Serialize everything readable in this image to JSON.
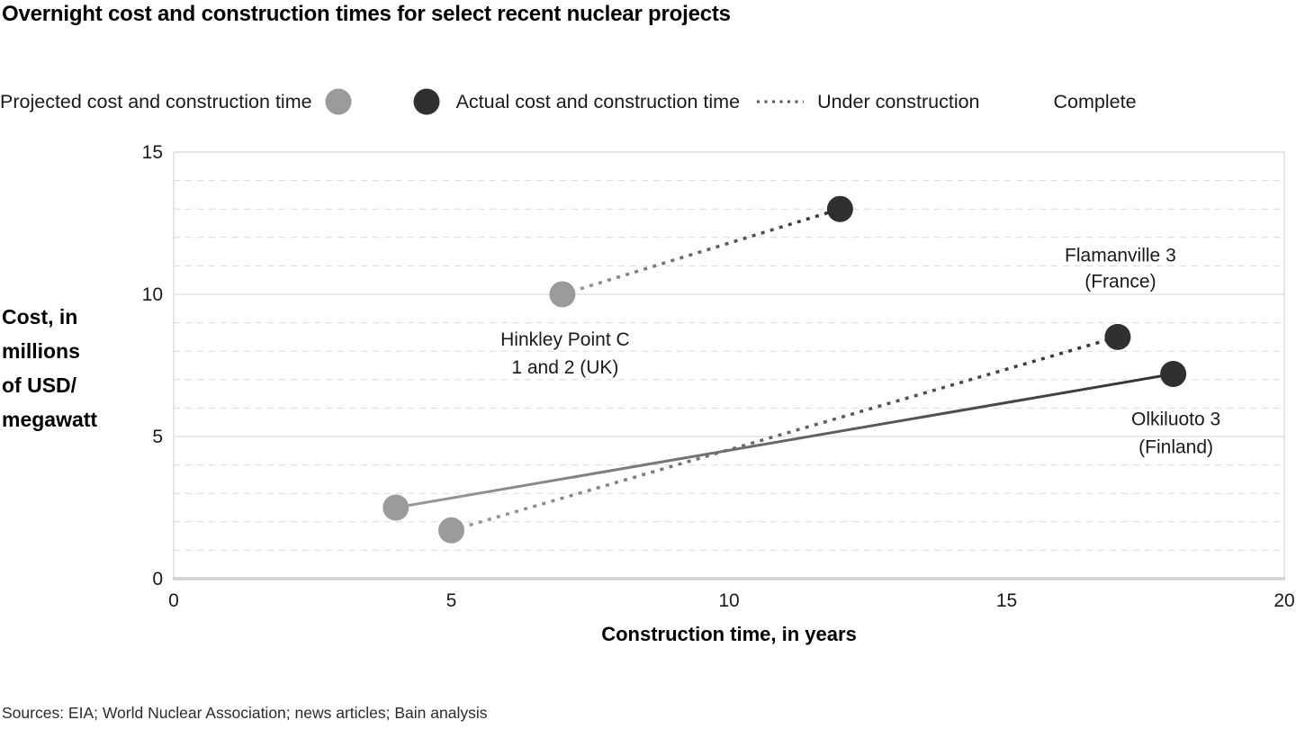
{
  "title": "Overnight cost and construction times for select recent nuclear projects",
  "legend": {
    "projected_label": "Projected cost and construction time",
    "actual_label": "Actual cost and construction time",
    "under_construction_label": "Under construction",
    "complete_label": "Complete"
  },
  "y_axis_title_display": "Cost, in\nmillions\nof USD/\nmegawatt",
  "sources": "Sources: EIA; World Nuclear Association; news articles; Bain analysis",
  "colors": {
    "projected": "#9b9b9b",
    "actual": "#303030",
    "text": "#1a1a1a",
    "axis_text": "#1a1a1a",
    "grid_minor": "#d9d9d9",
    "grid_major": "#d4d4d4",
    "border": "#cccccc",
    "axis_bottom": "#d2d2d2",
    "legend_dotted": "#555555",
    "legend_solid_start": "#8a8a8a",
    "legend_solid_end": "#333333"
  },
  "chart_data": {
    "type": "scatter",
    "title": "Overnight cost and construction times for select recent nuclear projects",
    "xlabel": "Construction time, in years",
    "ylabel": "Cost, in millions of USD/megawatt",
    "xlim": [
      0,
      20
    ],
    "ylim": [
      0,
      15
    ],
    "xticks": [
      0,
      5,
      10,
      15,
      20
    ],
    "yticks": [
      0,
      5,
      10,
      15
    ],
    "grid": "horizontal, minor dashed every 1 unit, major solid every 5 units",
    "legend_position": "top",
    "series": [
      {
        "name": "Hinkley Point C 1 and 2 (UK)",
        "label_lines": [
          "Hinkley Point C",
          "1 and 2 (UK)"
        ],
        "status": "under_construction",
        "projected": {
          "x": 7,
          "y": 10
        },
        "actual": {
          "x": 12,
          "y": 13
        },
        "annotation": {
          "anchor": "projected",
          "side": "below"
        }
      },
      {
        "name": "Flamanville 3 (France)",
        "label_lines": [
          "Flamanville 3",
          "(France)"
        ],
        "status": "under_construction",
        "projected": {
          "x": 5,
          "y": 1.7
        },
        "actual": {
          "x": 17,
          "y": 8.5
        },
        "annotation": {
          "anchor": "actual",
          "side": "above"
        }
      },
      {
        "name": "Olkiluoto 3 (Finland)",
        "label_lines": [
          "Olkiluoto 3",
          "(Finland)"
        ],
        "status": "complete",
        "projected": {
          "x": 4,
          "y": 2.5
        },
        "actual": {
          "x": 18,
          "y": 7.2
        },
        "annotation": {
          "anchor": "actual",
          "side": "below"
        }
      }
    ]
  }
}
